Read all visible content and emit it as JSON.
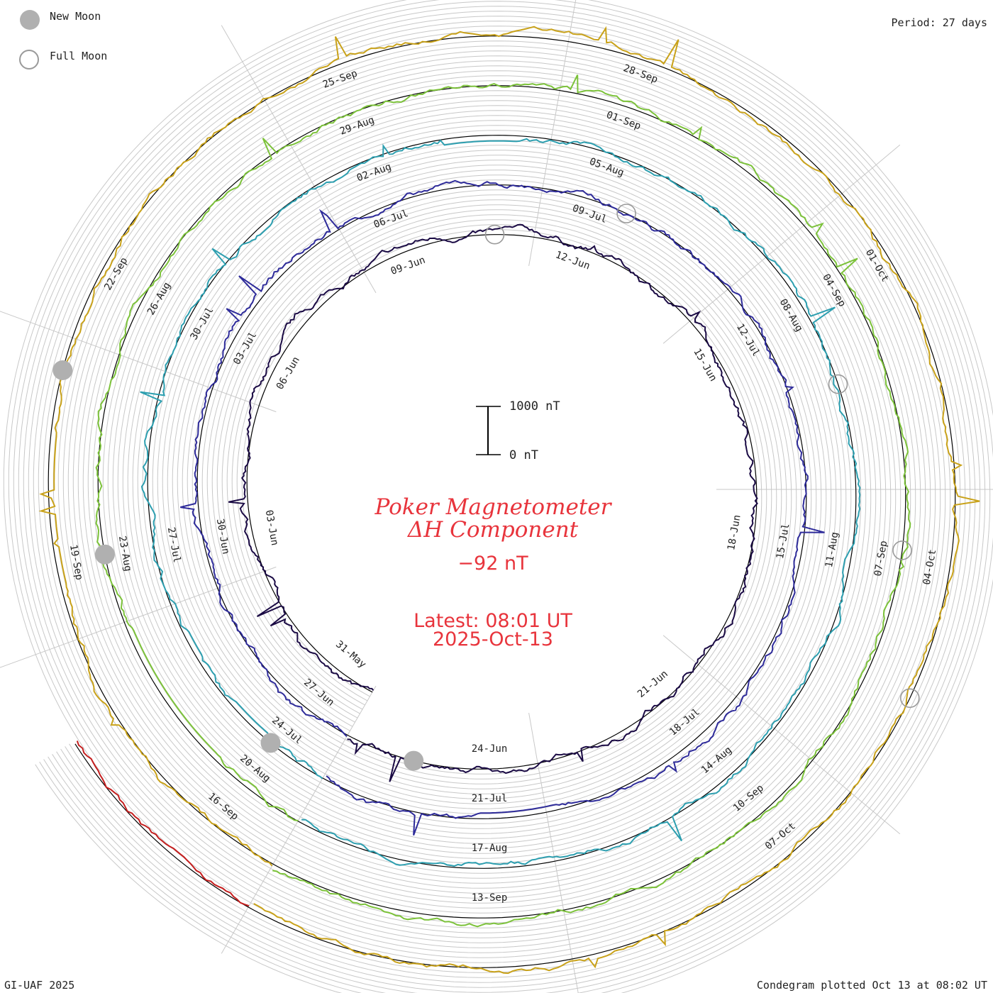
{
  "header": {
    "period": "Period: 27 days",
    "credit": "GI-UAF 2025",
    "plotted": "Condegram plotted Oct 13 at 08:02 UT"
  },
  "legend": {
    "new_moon": "New Moon",
    "full_moon": "Full Moon",
    "new_moon_color": "#b0b0b0",
    "full_moon_color": "#9a9a9a"
  },
  "center": {
    "title_line1": "Poker Magnetometer",
    "title_line2": "ΔH Component",
    "value": "−92 nT",
    "latest": "Latest: 08:01 UT",
    "date": "2025-Oct-13"
  },
  "scale": {
    "top_label": "1000 nT",
    "bottom_label": "0 nT"
  },
  "chart_data": {
    "type": "line",
    "title": "Poker Magnetometer ΔH Component (Condegram spiral)",
    "period_days": 27,
    "units": "nT",
    "latest_value": -92,
    "turns": [
      {
        "name": "turn-1",
        "color": "#1a0a44",
        "date_labels": [
          "31-May",
          "03-Jun",
          "06-Jun",
          "09-Jun",
          "12-Jun",
          "15-Jun",
          "18-Jun",
          "21-Jun",
          "24-Jun"
        ]
      },
      {
        "name": "turn-2",
        "color": "#2e2b9a",
        "date_labels": [
          "27-Jun",
          "30-Jun",
          "03-Jul",
          "06-Jul",
          "09-Jul",
          "12-Jul",
          "15-Jul",
          "18-Jul",
          "21-Jul"
        ]
      },
      {
        "name": "turn-3",
        "color": "#2d9fb0",
        "date_labels": [
          "24-Jul",
          "27-Jul",
          "30-Jul",
          "02-Aug",
          "05-Aug",
          "08-Aug",
          "11-Aug",
          "14-Aug",
          "17-Aug"
        ]
      },
      {
        "name": "turn-4",
        "color": "#7cc23a",
        "date_labels": [
          "20-Aug",
          "23-Aug",
          "26-Aug",
          "29-Aug",
          "01-Sep",
          "04-Sep",
          "07-Sep",
          "10-Sep",
          "13-Sep"
        ]
      },
      {
        "name": "turn-5",
        "color": "#c9a21a",
        "date_labels": [
          "16-Sep",
          "19-Sep",
          "22-Sep",
          "25-Sep",
          "28-Sep",
          "01-Oct",
          "04-Oct",
          "07-Oct"
        ]
      },
      {
        "name": "turn-6",
        "color": "#c41e1e",
        "date_labels": []
      }
    ],
    "new_moon_dates": [
      "25-Jun",
      "24-Jul",
      "23-Aug",
      "21-Sep"
    ],
    "full_moon_dates": [
      "11-Jun",
      "10-Jul",
      "09-Aug",
      "07-Sep",
      "07-Oct"
    ]
  }
}
